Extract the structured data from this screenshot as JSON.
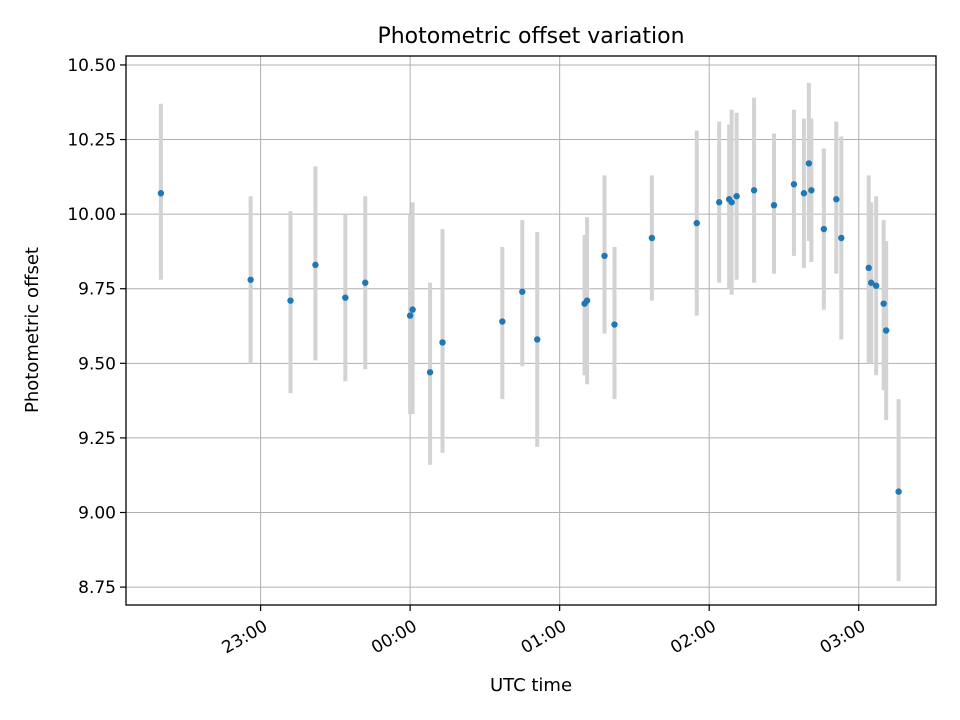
{
  "chart_data": {
    "type": "scatter",
    "title": "Photometric offset variation",
    "xlabel": "UTC time",
    "ylabel": "Photometric offset",
    "xlim": [
      "22:06",
      "03:31"
    ],
    "ylim": [
      8.69,
      10.53
    ],
    "xticks": [
      "23:00",
      "00:00",
      "01:00",
      "02:00",
      "03:00"
    ],
    "yticks": [
      "8.75",
      "9.00",
      "9.25",
      "9.50",
      "9.75",
      "10.00",
      "10.25",
      "10.50"
    ],
    "grid": true,
    "colors": {
      "point": "#1f77b4",
      "errorbar": "#d3d3d3"
    },
    "points": [
      {
        "x": "22:20",
        "y": 10.07,
        "lo": 9.78,
        "hi": 10.37
      },
      {
        "x": "22:56",
        "y": 9.78,
        "lo": 9.5,
        "hi": 10.06
      },
      {
        "x": "23:12",
        "y": 9.71,
        "lo": 9.4,
        "hi": 10.01
      },
      {
        "x": "23:22",
        "y": 9.83,
        "lo": 9.51,
        "hi": 10.16
      },
      {
        "x": "23:34",
        "y": 9.72,
        "lo": 9.44,
        "hi": 10.0
      },
      {
        "x": "23:42",
        "y": 9.77,
        "lo": 9.48,
        "hi": 10.06
      },
      {
        "x": "00:00",
        "y": 9.66,
        "lo": 9.33,
        "hi": 10.0
      },
      {
        "x": "00:01",
        "y": 9.68,
        "lo": 9.33,
        "hi": 10.04
      },
      {
        "x": "00:08",
        "y": 9.47,
        "lo": 9.16,
        "hi": 9.77
      },
      {
        "x": "00:13",
        "y": 9.57,
        "lo": 9.2,
        "hi": 9.95
      },
      {
        "x": "00:37",
        "y": 9.64,
        "lo": 9.38,
        "hi": 9.89
      },
      {
        "x": "00:45",
        "y": 9.74,
        "lo": 9.49,
        "hi": 9.98
      },
      {
        "x": "00:51",
        "y": 9.58,
        "lo": 9.22,
        "hi": 9.94
      },
      {
        "x": "01:10",
        "y": 9.7,
        "lo": 9.46,
        "hi": 9.93
      },
      {
        "x": "01:11",
        "y": 9.71,
        "lo": 9.43,
        "hi": 9.99
      },
      {
        "x": "01:18",
        "y": 9.86,
        "lo": 9.6,
        "hi": 10.13
      },
      {
        "x": "01:22",
        "y": 9.63,
        "lo": 9.38,
        "hi": 9.89
      },
      {
        "x": "01:37",
        "y": 9.92,
        "lo": 9.71,
        "hi": 10.13
      },
      {
        "x": "01:55",
        "y": 9.97,
        "lo": 9.66,
        "hi": 10.28
      },
      {
        "x": "02:04",
        "y": 10.04,
        "lo": 9.77,
        "hi": 10.31
      },
      {
        "x": "02:08",
        "y": 10.05,
        "lo": 9.75,
        "hi": 10.3
      },
      {
        "x": "02:09",
        "y": 10.04,
        "lo": 9.73,
        "hi": 10.35
      },
      {
        "x": "02:11",
        "y": 10.06,
        "lo": 9.78,
        "hi": 10.34
      },
      {
        "x": "02:18",
        "y": 10.08,
        "lo": 9.77,
        "hi": 10.39
      },
      {
        "x": "02:26",
        "y": 10.03,
        "lo": 9.8,
        "hi": 10.27
      },
      {
        "x": "02:34",
        "y": 10.1,
        "lo": 9.86,
        "hi": 10.35
      },
      {
        "x": "02:38",
        "y": 10.07,
        "lo": 9.82,
        "hi": 10.32
      },
      {
        "x": "02:40",
        "y": 10.17,
        "lo": 9.91,
        "hi": 10.44
      },
      {
        "x": "02:41",
        "y": 10.08,
        "lo": 9.84,
        "hi": 10.32
      },
      {
        "x": "02:46",
        "y": 9.95,
        "lo": 9.68,
        "hi": 10.22
      },
      {
        "x": "02:51",
        "y": 10.05,
        "lo": 9.8,
        "hi": 10.31
      },
      {
        "x": "02:53",
        "y": 9.92,
        "lo": 9.58,
        "hi": 10.26
      },
      {
        "x": "03:04",
        "y": 9.82,
        "lo": 9.5,
        "hi": 10.13
      },
      {
        "x": "03:05",
        "y": 9.77,
        "lo": 9.5,
        "hi": 10.04
      },
      {
        "x": "03:07",
        "y": 9.76,
        "lo": 9.46,
        "hi": 10.06
      },
      {
        "x": "03:10",
        "y": 9.7,
        "lo": 9.41,
        "hi": 9.98
      },
      {
        "x": "03:11",
        "y": 9.61,
        "lo": 9.31,
        "hi": 9.91
      },
      {
        "x": "03:16",
        "y": 9.07,
        "lo": 8.77,
        "hi": 9.38
      }
    ]
  }
}
